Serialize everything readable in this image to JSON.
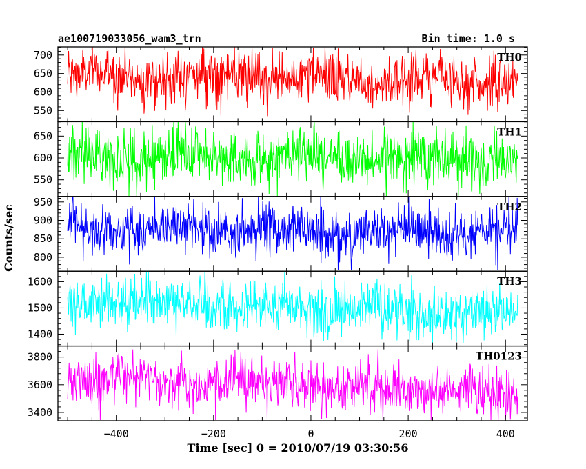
{
  "chart_data": {
    "type": "line",
    "title_left": "ae100719033056_wam3_trn",
    "title_right": "Bin time: 1.0 s",
    "xlabel": "Time [sec] 0 = 2010/07/19 03:30:56",
    "ylabel": "Counts/sec",
    "xlim": [
      -520,
      445
    ],
    "x_start": -500,
    "x_end": 425,
    "x_ticks": [
      -400,
      -200,
      0,
      200,
      400
    ],
    "x_tick_labels": [
      "−400",
      "−200",
      "0",
      "200",
      "400"
    ],
    "grid": false,
    "panels": [
      {
        "name": "TH0",
        "color": "#ff0000",
        "ylim": [
          520,
          722
        ],
        "yticks": [
          550,
          600,
          650,
          700
        ],
        "ytick_labels": [
          "550",
          "600",
          "650",
          "700"
        ],
        "mean_start": 645,
        "mean_end": 630,
        "amplitude": 35,
        "min": 535,
        "max": 722
      },
      {
        "name": "TH1",
        "color": "#00ff00",
        "ylim": [
          512,
          683
        ],
        "yticks": [
          550,
          600,
          650
        ],
        "ytick_labels": [
          "550",
          "600",
          "650"
        ],
        "mean_start": 605,
        "mean_end": 598,
        "amplitude": 32,
        "min": 512,
        "max": 683
      },
      {
        "name": "TH2",
        "color": "#0000ff",
        "ylim": [
          762,
          965
        ],
        "yticks": [
          800,
          850,
          900,
          950
        ],
        "ytick_labels": [
          "800",
          "850",
          "900",
          "950"
        ],
        "mean_start": 882,
        "mean_end": 860,
        "amplitude": 35,
        "min": 765,
        "max": 965
      },
      {
        "name": "TH3",
        "color": "#00ffff",
        "ylim": [
          1355,
          1640
        ],
        "yticks": [
          1400,
          1500,
          1600
        ],
        "ytick_labels": [
          "1400",
          "1500",
          "1600"
        ],
        "mean_start": 1530,
        "mean_end": 1475,
        "amplitude": 48,
        "min": 1365,
        "max": 1640
      },
      {
        "name": "TH0123",
        "color": "#ff00ff",
        "ylim": [
          3340,
          3880
        ],
        "yticks": [
          3400,
          3600,
          3800
        ],
        "ytick_labels": [
          "3400",
          "3600",
          "3800"
        ],
        "mean_start": 3655,
        "mean_end": 3540,
        "amplitude": 90,
        "min": 3345,
        "max": 3880
      }
    ]
  }
}
